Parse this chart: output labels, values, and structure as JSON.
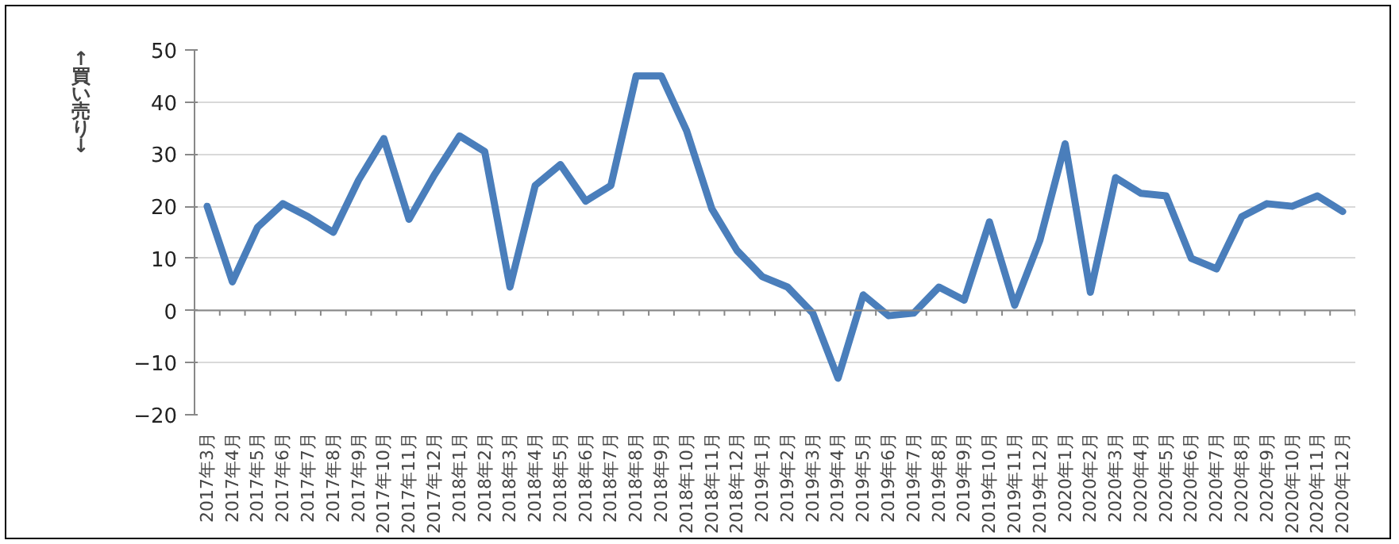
{
  "chart_data": {
    "type": "line",
    "ylabel": "↑買い売り↓",
    "categories": [
      "2017年3月",
      "2017年4月",
      "2017年5月",
      "2017年6月",
      "2017年7月",
      "2017年8月",
      "2017年9月",
      "2017年10月",
      "2017年11月",
      "2017年12月",
      "2018年1月",
      "2018年2月",
      "2018年3月",
      "2018年4月",
      "2018年5月",
      "2018年6月",
      "2018年7月",
      "2018年8月",
      "2018年9月",
      "2018年10月",
      "2018年11月",
      "2018年12月",
      "2019年1月",
      "2019年2月",
      "2019年3月",
      "2019年4月",
      "2019年5月",
      "2019年6月",
      "2019年7月",
      "2019年8月",
      "2019年9月",
      "2019年10月",
      "2019年11月",
      "2019年12月",
      "2020年1月",
      "2020年2月",
      "2020年3月",
      "2020年4月",
      "2020年5月",
      "2020年6月",
      "2020年7月",
      "2020年8月",
      "2020年9月",
      "2020年10月",
      "2020年11月",
      "2020年12月"
    ],
    "series": [
      {
        "color": "#4a7ebb",
        "values": [
          20,
          5.5,
          16,
          20.5,
          18,
          15,
          25,
          33,
          17.5,
          26,
          33.5,
          30.5,
          4.5,
          24,
          28,
          21,
          24,
          45,
          45,
          34.5,
          19.5,
          11.5,
          6.5,
          4.5,
          -0.5,
          -13,
          3,
          -1,
          -0.5,
          4.5,
          2,
          17,
          1,
          13.5,
          32,
          3.5,
          25.5,
          22.5,
          22,
          10,
          8,
          18,
          20.5,
          20,
          22,
          19
        ]
      }
    ],
    "ylim": [
      -20,
      50
    ],
    "yticks": [
      -20,
      -10,
      0,
      10,
      20,
      30,
      40,
      50
    ],
    "grid": "y",
    "marker": "none",
    "line_style": "solid"
  }
}
